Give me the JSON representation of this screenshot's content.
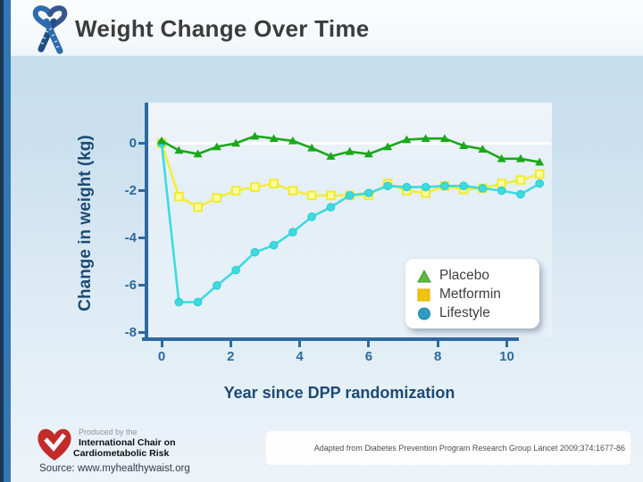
{
  "header": {
    "title": "Weight Change Over Time",
    "icon": "ribbon-icon"
  },
  "chart_data": {
    "type": "line",
    "title": "",
    "xlabel": "Year since DPP randomization",
    "ylabel": "Change in weight (kg)",
    "x_ticks": [
      0,
      2,
      4,
      6,
      8,
      10
    ],
    "y_ticks": [
      0,
      -2,
      -4,
      -6,
      -8
    ],
    "xlim": [
      -0.55,
      11.6
    ],
    "ylim": [
      -8.5,
      1.7
    ],
    "grid": "white zero line only",
    "legend_position": "inside lower-right",
    "x": [
      0,
      0.5,
      1.05,
      1.6,
      2.15,
      2.7,
      3.25,
      3.8,
      4.35,
      4.9,
      5.45,
      6.0,
      6.55,
      7.1,
      7.65,
      8.2,
      8.75,
      9.3,
      9.85,
      10.4,
      10.95
    ],
    "series": [
      {
        "name": "Placebo",
        "marker": "triangle",
        "line_color": "#1aa81a",
        "marker_fill": "#1aa81a",
        "marker_edge": "#1aa81a",
        "values": [
          0.1,
          -0.3,
          -0.45,
          -0.15,
          0.0,
          0.3,
          0.2,
          0.1,
          -0.2,
          -0.55,
          -0.35,
          -0.45,
          -0.15,
          0.15,
          0.2,
          0.2,
          -0.1,
          -0.25,
          -0.65,
          -0.65,
          -0.8
        ]
      },
      {
        "name": "Metformin",
        "marker": "square",
        "line_color": "#f2ee38",
        "marker_fill": "#fdfba0",
        "marker_edge": "#f0eb30",
        "values": [
          0.0,
          -2.25,
          -2.7,
          -2.3,
          -2.0,
          -1.85,
          -1.7,
          -2.0,
          -2.2,
          -2.2,
          -2.2,
          -2.2,
          -1.7,
          -2.0,
          -2.1,
          -1.8,
          -1.95,
          -1.9,
          -1.7,
          -1.55,
          -1.3
        ]
      },
      {
        "name": "Lifestyle",
        "marker": "circle",
        "line_color": "#3cdbe0",
        "marker_fill": "#3cdbe0",
        "marker_edge": "#2bc9cf",
        "values": [
          0.0,
          -6.7,
          -6.7,
          -6.0,
          -5.35,
          -4.6,
          -4.3,
          -3.75,
          -3.1,
          -2.7,
          -2.2,
          -2.1,
          -1.8,
          -1.85,
          -1.85,
          -1.8,
          -1.8,
          -1.9,
          -2.0,
          -2.15,
          -1.7
        ]
      }
    ],
    "legend": [
      {
        "label": "Placebo",
        "marker": "triangle",
        "color": "#5fb93c",
        "color2": "#3f9b35"
      },
      {
        "label": "Metformin",
        "marker": "square",
        "color": "#f2c40e",
        "color2": "#e0ae00"
      },
      {
        "label": "Lifestyle",
        "marker": "circle",
        "color": "#2d9cc3",
        "color2": "#2386ab"
      }
    ]
  },
  "footer": {
    "produced_by": "Produced by the",
    "org_line1": "International Chair on",
    "org_line2": "Cardiometabolic Risk",
    "source": "Source: www.myhealthywaist.org",
    "citation": "Adapted from Diabetes Prevention Program Research Group Lancet 2009;374:1677-86"
  },
  "colors": {
    "edge_bar_navy": "#1a3756",
    "edge_bar_blue": "#3377b5",
    "axis": "#2d6a9f",
    "axis_title": "#1c4a74",
    "slide_title": "#3c3c3c"
  }
}
